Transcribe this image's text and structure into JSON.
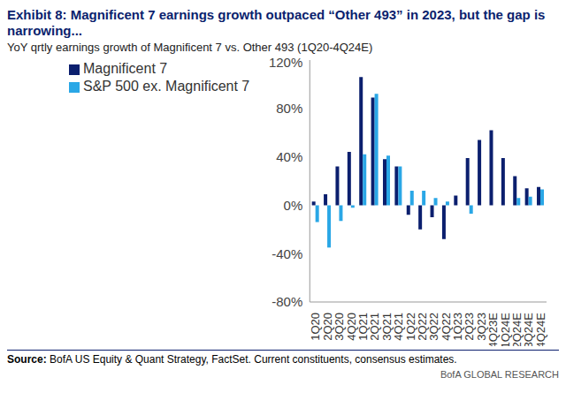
{
  "chart_data": {
    "type": "bar",
    "title": "Exhibit 8: Magnificent 7 earnings growth outpaced “Other 493” in 2023, but the gap is narrowing...",
    "subtitle": "YoY qrtly earnings growth of Magnificent 7 vs. Other 493 (1Q20-4Q24E)",
    "categories": [
      "1Q20",
      "2Q20",
      "3Q20",
      "4Q20",
      "1Q21",
      "2Q21",
      "3Q21",
      "4Q21",
      "1Q22",
      "2Q22",
      "3Q22",
      "4Q22",
      "1Q23",
      "2Q23",
      "3Q23",
      "4Q23E",
      "1Q24E",
      "2Q24E",
      "3Q24E",
      "4Q24E"
    ],
    "series": [
      {
        "name": "Magnificent 7",
        "color": "#0b1f6e",
        "values": [
          3,
          9,
          32,
          44,
          106,
          89,
          38,
          32,
          -8,
          -20,
          -10,
          -28,
          8,
          39,
          54,
          62,
          39,
          24,
          14,
          15
        ]
      },
      {
        "name": "S&P 500 ex. Magnificent 7",
        "color": "#2aa7e6",
        "values": [
          -14,
          -35,
          -13,
          -2,
          42,
          92,
          41,
          32,
          12,
          12,
          6,
          3,
          0,
          -7,
          0,
          0,
          0,
          6,
          7,
          13
        ]
      }
    ],
    "ylim": [
      -80,
      120
    ],
    "yticks": [
      {
        "value": -80,
        "label": "-80%"
      },
      {
        "value": -40,
        "label": "-40%"
      },
      {
        "value": 0,
        "label": "0%"
      },
      {
        "value": 40,
        "label": "40%"
      },
      {
        "value": 80,
        "label": "80%"
      },
      {
        "value": 120,
        "label": "120%"
      }
    ],
    "grid": false,
    "legend": "top-left",
    "source": "Source: BofA US Equity & Quant Strategy, FactSet. Current constituents, consensus estimates.",
    "footer": "BofA GLOBAL RESEARCH"
  }
}
